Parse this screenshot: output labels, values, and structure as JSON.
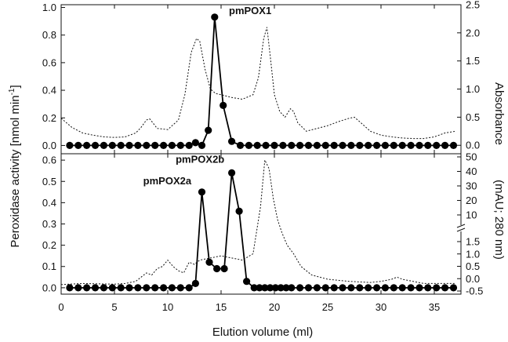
{
  "chart_data": {
    "type": "line",
    "shared_x": {
      "label": "Elution volume (ml)",
      "lim": [
        0,
        37.5
      ],
      "ticks": [
        0,
        5,
        10,
        15,
        20,
        25,
        30,
        35
      ]
    },
    "ylabel_left": "Peroxidase activity [nmol min",
    "ylabel_left_sup": "-1",
    "ylabel_left_end": "]",
    "ylabel_right_top": "Absorbance",
    "ylabel_right_bottom": "(mAU; 280 nm)",
    "panels": [
      {
        "name": "top",
        "y_left": {
          "lim": [
            -0.06,
            1.02
          ],
          "ticks": [
            "0.0",
            "0.2",
            "0.4",
            "0.6",
            "0.8",
            "1.0"
          ]
        },
        "y_right": {
          "lim": [
            -0.15,
            2.5
          ],
          "ticks": [
            "0.0",
            "0.5",
            "1.0",
            "1.5",
            "2.0",
            "2.5"
          ]
        },
        "annotations": [
          {
            "text": "pmPOX1",
            "x": 15.0,
            "y": 0.93
          }
        ],
        "activity": {
          "x": [
            0.8,
            1.6,
            2.4,
            3.2,
            4.0,
            4.8,
            5.6,
            6.4,
            7.2,
            8.0,
            8.8,
            9.6,
            10.4,
            11.2,
            12.0,
            12.6,
            13.2,
            13.8,
            14.4,
            15.2,
            16.0,
            16.8,
            17.6,
            18.4,
            19.2,
            20.0,
            20.8,
            21.6,
            22.4,
            23.2,
            24.0,
            24.8,
            25.6,
            26.4,
            27.2,
            28.0,
            28.8,
            29.6,
            30.4,
            31.2,
            32.0,
            32.8,
            33.6,
            34.4,
            35.2,
            36.0,
            36.8
          ],
          "y": [
            0,
            0,
            0,
            0,
            0,
            0,
            0,
            0,
            0,
            0,
            0,
            0,
            0,
            0,
            0,
            0.02,
            0,
            0.11,
            0.93,
            0.29,
            0.03,
            0,
            0,
            0,
            0,
            0,
            0,
            0,
            0,
            0,
            0,
            0,
            0,
            0,
            0,
            0,
            0,
            0,
            0,
            0,
            0,
            0,
            0,
            0,
            0,
            0,
            0
          ]
        },
        "absorbance": {
          "x": [
            0,
            1,
            2,
            3,
            4,
            5,
            6,
            7,
            7.5,
            8,
            8.3,
            8.6,
            9,
            10,
            11,
            11.6,
            12.2,
            12.7,
            13,
            13.5,
            14,
            14.5,
            15,
            16,
            17,
            18,
            18.5,
            19,
            19.3,
            19.6,
            20,
            20.5,
            21,
            21.5,
            21.8,
            22.2,
            23,
            24,
            25,
            26,
            27,
            27.5,
            28,
            29,
            30,
            31,
            32,
            33,
            34,
            35,
            36,
            37
          ],
          "y": [
            0.48,
            0.32,
            0.22,
            0.18,
            0.15,
            0.14,
            0.15,
            0.22,
            0.32,
            0.45,
            0.47,
            0.4,
            0.3,
            0.28,
            0.45,
            0.9,
            1.65,
            1.9,
            1.85,
            1.35,
            1.0,
            0.92,
            0.9,
            0.85,
            0.82,
            0.9,
            1.2,
            1.9,
            2.1,
            1.6,
            0.9,
            0.6,
            0.5,
            0.65,
            0.6,
            0.4,
            0.25,
            0.3,
            0.35,
            0.42,
            0.48,
            0.5,
            0.42,
            0.25,
            0.18,
            0.15,
            0.13,
            0.12,
            0.12,
            0.15,
            0.22,
            0.25
          ]
        }
      },
      {
        "name": "bottom",
        "y_left": {
          "lim": [
            -0.03,
            0.63
          ],
          "ticks": [
            "0.0",
            "0.1",
            "0.2",
            "0.3",
            "0.4",
            "0.5",
            "0.6"
          ]
        },
        "y_right": {
          "broken": true,
          "ticks_low": [
            "-0.5",
            "0.0",
            "0.5",
            "1.0",
            "1.5"
          ],
          "ticks_high": [
            "10",
            "20",
            "30",
            "40",
            "50"
          ]
        },
        "annotations": [
          {
            "text": "pmPOX2b",
            "x": 15.9,
            "y": 0.55
          },
          {
            "text": "pmPOX2a",
            "x": 12.8,
            "y": 0.45
          }
        ],
        "activity": {
          "x": [
            0.8,
            1.6,
            2.4,
            3.2,
            4.0,
            4.8,
            5.6,
            6.4,
            7.2,
            8.0,
            8.8,
            9.6,
            10.4,
            11.2,
            12.0,
            12.6,
            13.2,
            13.9,
            14.6,
            15.3,
            16.0,
            16.7,
            17.4,
            18.1,
            18.6,
            19.1,
            19.6,
            20.1,
            20.6,
            21.1,
            21.6,
            22.4,
            23.2,
            24.0,
            24.8,
            25.6,
            26.4,
            27.2,
            28.0,
            28.8,
            29.6,
            30.4,
            31.2,
            32.0,
            32.8,
            33.6,
            34.4,
            35.2,
            36.0,
            36.8
          ],
          "y": [
            0,
            0,
            0,
            0,
            0,
            0,
            0,
            0,
            0,
            0,
            0,
            0,
            0,
            0,
            0,
            0.02,
            0.45,
            0.12,
            0.09,
            0.09,
            0.54,
            0.36,
            0.03,
            0,
            0,
            0,
            0,
            0,
            0,
            0,
            0,
            0,
            0,
            0,
            0,
            0,
            0,
            0,
            0,
            0,
            0,
            0,
            0,
            0,
            0,
            0,
            0,
            0,
            0,
            0
          ]
        },
        "absorbance_panel_y": {
          "x": [
            0,
            2,
            4,
            5,
            6,
            7,
            7.5,
            8,
            8.5,
            9,
            9.5,
            10,
            10.5,
            11,
            11.5,
            12,
            12.5,
            13,
            14,
            15,
            16,
            17,
            18,
            18.7,
            19.1,
            19.5,
            19.9,
            20.3,
            20.7,
            21.2,
            21.8,
            22.5,
            23.5,
            25,
            27,
            29,
            30,
            31,
            31.5,
            32,
            33,
            34,
            35,
            36,
            37
          ],
          "y": [
            0.015,
            0.02,
            0.018,
            0.017,
            0.02,
            0.03,
            0.05,
            0.07,
            0.06,
            0.09,
            0.1,
            0.13,
            0.1,
            0.08,
            0.07,
            0.12,
            0.11,
            0.13,
            0.14,
            0.15,
            0.14,
            0.13,
            0.16,
            0.38,
            0.6,
            0.56,
            0.42,
            0.32,
            0.26,
            0.2,
            0.16,
            0.1,
            0.06,
            0.04,
            0.03,
            0.025,
            0.03,
            0.04,
            0.05,
            0.04,
            0.03,
            0.02,
            0.02,
            0.02,
            0.02
          ]
        }
      }
    ]
  }
}
